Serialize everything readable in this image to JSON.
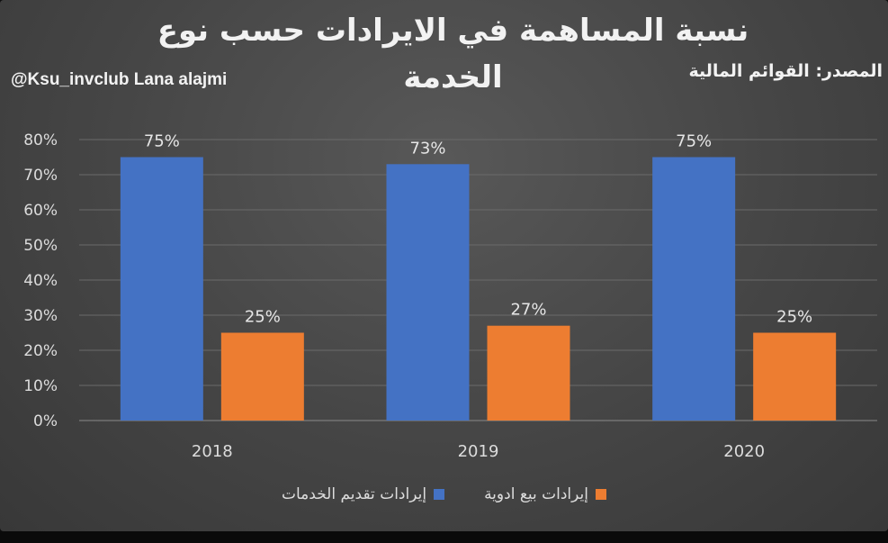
{
  "header": {
    "title_line1": "نسبة المساهمة في الايرادات حسب نوع",
    "title_line2": "الخدمة",
    "watermark": "@Ksu_invclub Lana alajmi",
    "source": "المصدر: القوائم المالية"
  },
  "colors": {
    "series_services": "#4472C4",
    "series_drugs": "#ED7D31",
    "gridline": "#6a6a6a",
    "axis_text": "#dcdcdc"
  },
  "chart_data": {
    "type": "bar",
    "title": "نسبة المساهمة في الايرادات حسب نوع الخدمة",
    "categories": [
      "2018",
      "2019",
      "2020"
    ],
    "series": [
      {
        "name": "إيرادات تقديم الخدمات",
        "values": [
          75,
          73,
          75
        ],
        "labels": [
          "75%",
          "73%",
          "75%"
        ]
      },
      {
        "name": "إيرادات بيع ادوية",
        "values": [
          25,
          27,
          25
        ],
        "labels": [
          "25%",
          "27%",
          "25%"
        ]
      }
    ],
    "ylim": [
      0,
      80
    ],
    "yticks": [
      0,
      10,
      20,
      30,
      40,
      50,
      60,
      70,
      80
    ],
    "ytick_labels": [
      "0%",
      "10%",
      "20%",
      "30%",
      "40%",
      "50%",
      "60%",
      "70%",
      "80%"
    ],
    "grid": true,
    "legend": "bottom"
  }
}
